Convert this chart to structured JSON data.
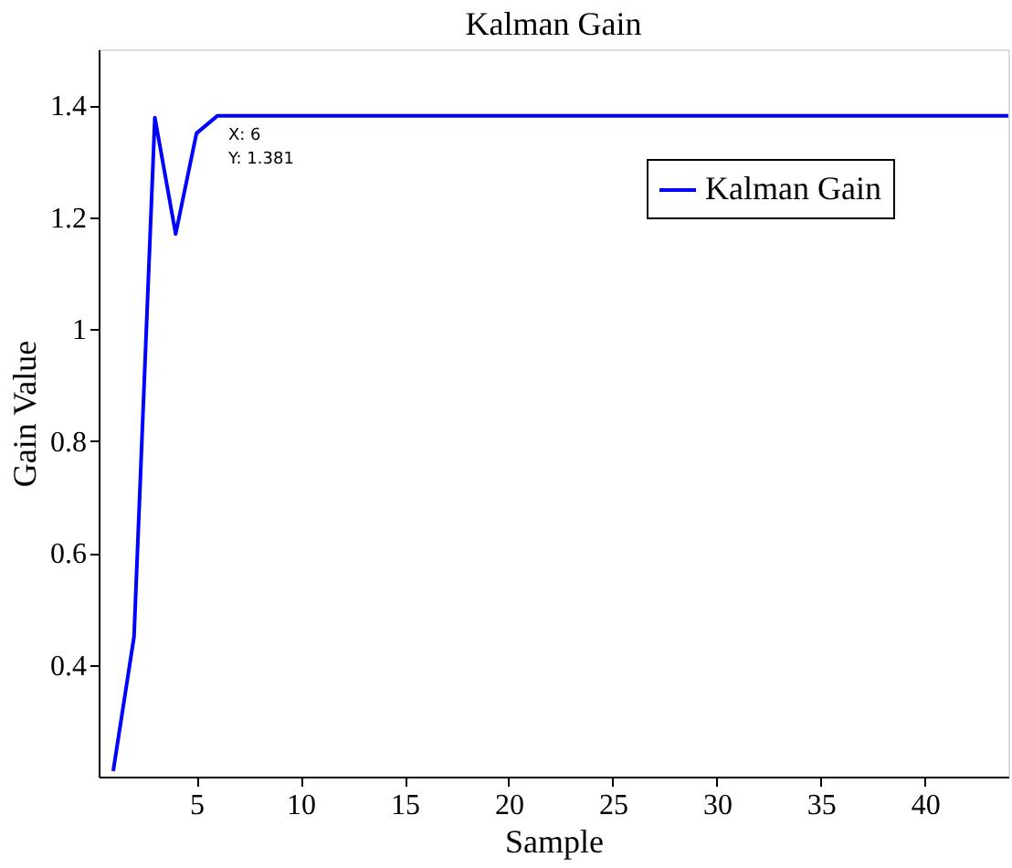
{
  "chart_data": {
    "type": "line",
    "title": "Kalman Gain",
    "xlabel": "Sample",
    "ylabel": "Gain Value",
    "x": [
      1,
      2,
      3,
      4,
      5,
      6,
      44
    ],
    "series": [
      {
        "name": "Kalman Gain",
        "color": "#0000ff",
        "values": [
          0.21,
          0.45,
          1.378,
          1.17,
          1.35,
          1.381,
          1.381
        ]
      }
    ],
    "xlim": [
      0.3,
      44
    ],
    "ylim": [
      0.2,
      1.5
    ],
    "xticks": [
      5,
      10,
      15,
      20,
      25,
      30,
      35,
      40
    ],
    "yticks": [
      0.4,
      0.6,
      0.8,
      1,
      1.2,
      1.4
    ],
    "annotations": [
      {
        "text": "X: 6\nY: 1.381",
        "x": 6,
        "y": 1.381
      }
    ],
    "legend": "top right",
    "grid": false,
    "marker": "none",
    "line_style": "solid"
  }
}
